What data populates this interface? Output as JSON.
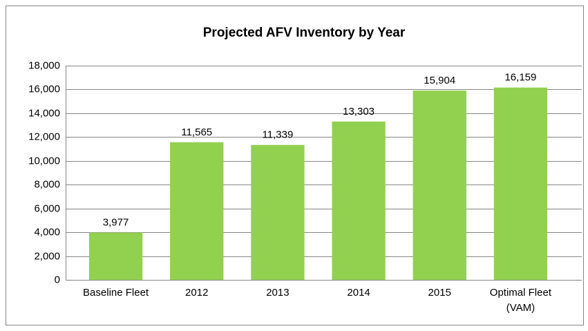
{
  "chart_data": {
    "type": "bar",
    "title": "Projected AFV Inventory by Year",
    "categories": [
      "Baseline Fleet",
      "2012",
      "2013",
      "2014",
      "2015",
      "Optimal Fleet (VAM)"
    ],
    "values": [
      3977,
      11565,
      11339,
      13303,
      15904,
      16159
    ],
    "value_labels": [
      "3,977",
      "11,565",
      "11,339",
      "13,303",
      "15,904",
      "16,159"
    ],
    "color": "#92d050",
    "ylim": [
      0,
      18000
    ],
    "yticks": [
      0,
      {
        "value": 2000,
        "label": "2,000"
      },
      {
        "value": 4000,
        "label": "4,000"
      },
      {
        "value": 6000,
        "label": "6,000"
      },
      {
        "value": 8000,
        "label": "8,000"
      },
      {
        "value": 10000,
        "label": "10,000"
      },
      {
        "value": 12000,
        "label": "12,000"
      },
      {
        "value": 14000,
        "label": "14,000"
      },
      {
        "value": 16000,
        "label": "16,000"
      },
      {
        "value": 18000,
        "label": "18,000"
      }
    ],
    "grid": true
  }
}
